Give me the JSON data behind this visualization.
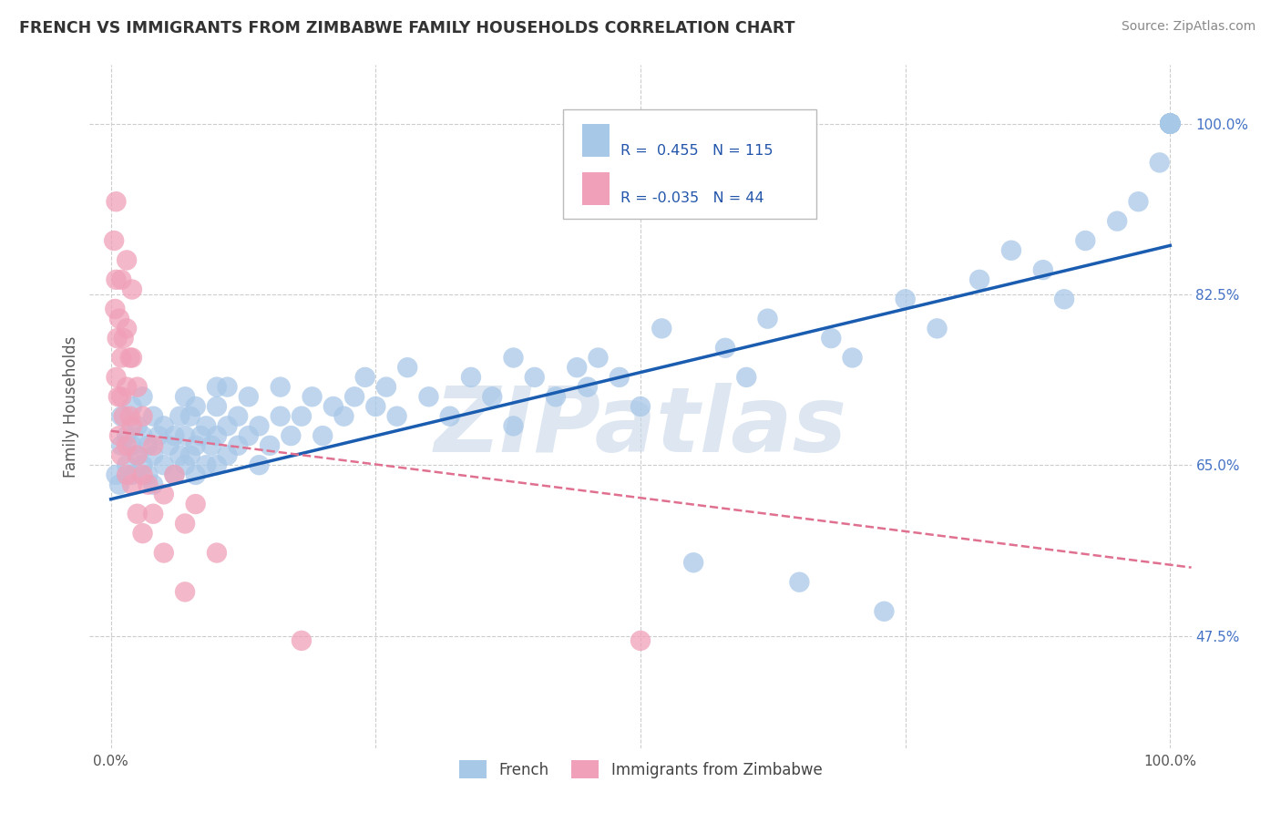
{
  "title": "FRENCH VS IMMIGRANTS FROM ZIMBABWE FAMILY HOUSEHOLDS CORRELATION CHART",
  "source": "Source: ZipAtlas.com",
  "ylabel": "Family Households",
  "watermark": "ZIPatlas",
  "xlim": [
    -0.02,
    1.02
  ],
  "ylim": [
    0.36,
    1.06
  ],
  "right_ytick_labels": [
    "100.0%",
    "82.5%",
    "65.0%",
    "47.5%"
  ],
  "right_ytick_values": [
    1.0,
    0.825,
    0.65,
    0.475
  ],
  "R_blue": 0.455,
  "N_blue": 115,
  "R_pink": -0.035,
  "N_pink": 44,
  "blue_color": "#A8C8E8",
  "pink_color": "#F0A0B8",
  "blue_line_color": "#1A5CB0",
  "pink_line_color": "#E07090",
  "grid_color": "#CCCCCC",
  "title_color": "#333333",
  "blue_scatter_x": [
    0.005,
    0.008,
    0.01,
    0.01,
    0.015,
    0.015,
    0.02,
    0.02,
    0.02,
    0.025,
    0.025,
    0.03,
    0.03,
    0.03,
    0.035,
    0.035,
    0.04,
    0.04,
    0.04,
    0.045,
    0.05,
    0.05,
    0.055,
    0.06,
    0.06,
    0.065,
    0.065,
    0.07,
    0.07,
    0.07,
    0.075,
    0.075,
    0.08,
    0.08,
    0.08,
    0.085,
    0.09,
    0.09,
    0.095,
    0.1,
    0.1,
    0.1,
    0.1,
    0.11,
    0.11,
    0.11,
    0.12,
    0.12,
    0.13,
    0.13,
    0.14,
    0.14,
    0.15,
    0.16,
    0.16,
    0.17,
    0.18,
    0.19,
    0.2,
    0.21,
    0.22,
    0.23,
    0.24,
    0.25,
    0.26,
    0.27,
    0.28,
    0.3,
    0.32,
    0.34,
    0.36,
    0.38,
    0.38,
    0.4,
    0.42,
    0.44,
    0.45,
    0.46,
    0.48,
    0.5,
    0.52,
    0.55,
    0.58,
    0.6,
    0.62,
    0.65,
    0.68,
    0.7,
    0.73,
    0.75,
    0.78,
    0.82,
    0.85,
    0.88,
    0.9,
    0.92,
    0.95,
    0.97,
    0.99,
    1.0,
    1.0,
    1.0,
    1.0,
    1.0,
    1.0,
    1.0,
    1.0,
    1.0,
    1.0,
    1.0,
    1.0,
    1.0,
    1.0,
    1.0,
    1.0
  ],
  "blue_scatter_y": [
    0.64,
    0.63,
    0.67,
    0.7,
    0.65,
    0.68,
    0.64,
    0.67,
    0.71,
    0.66,
    0.69,
    0.65,
    0.68,
    0.72,
    0.64,
    0.67,
    0.63,
    0.66,
    0.7,
    0.68,
    0.65,
    0.69,
    0.67,
    0.64,
    0.68,
    0.66,
    0.7,
    0.65,
    0.68,
    0.72,
    0.66,
    0.7,
    0.64,
    0.67,
    0.71,
    0.68,
    0.65,
    0.69,
    0.67,
    0.65,
    0.68,
    0.71,
    0.73,
    0.66,
    0.69,
    0.73,
    0.67,
    0.7,
    0.68,
    0.72,
    0.65,
    0.69,
    0.67,
    0.7,
    0.73,
    0.68,
    0.7,
    0.72,
    0.68,
    0.71,
    0.7,
    0.72,
    0.74,
    0.71,
    0.73,
    0.7,
    0.75,
    0.72,
    0.7,
    0.74,
    0.72,
    0.76,
    0.69,
    0.74,
    0.72,
    0.75,
    0.73,
    0.76,
    0.74,
    0.71,
    0.79,
    0.55,
    0.77,
    0.74,
    0.8,
    0.53,
    0.78,
    0.76,
    0.5,
    0.82,
    0.79,
    0.84,
    0.87,
    0.85,
    0.82,
    0.88,
    0.9,
    0.92,
    0.96,
    1.0,
    1.0,
    1.0,
    1.0,
    1.0,
    1.0,
    1.0,
    1.0,
    1.0,
    1.0,
    1.0,
    1.0,
    1.0,
    1.0,
    1.0,
    1.0
  ],
  "pink_scatter_x": [
    0.003,
    0.004,
    0.005,
    0.005,
    0.005,
    0.006,
    0.007,
    0.008,
    0.008,
    0.01,
    0.01,
    0.01,
    0.01,
    0.012,
    0.012,
    0.015,
    0.015,
    0.015,
    0.015,
    0.015,
    0.018,
    0.018,
    0.02,
    0.02,
    0.02,
    0.02,
    0.025,
    0.025,
    0.025,
    0.03,
    0.03,
    0.03,
    0.035,
    0.04,
    0.04,
    0.05,
    0.05,
    0.06,
    0.07,
    0.07,
    0.08,
    0.1,
    0.18,
    0.5
  ],
  "pink_scatter_y": [
    0.88,
    0.81,
    0.74,
    0.84,
    0.92,
    0.78,
    0.72,
    0.8,
    0.68,
    0.76,
    0.84,
    0.72,
    0.66,
    0.78,
    0.7,
    0.86,
    0.79,
    0.73,
    0.67,
    0.64,
    0.76,
    0.7,
    0.83,
    0.76,
    0.69,
    0.63,
    0.73,
    0.66,
    0.6,
    0.7,
    0.64,
    0.58,
    0.63,
    0.67,
    0.6,
    0.62,
    0.56,
    0.64,
    0.59,
    0.52,
    0.61,
    0.56,
    0.47,
    0.47
  ],
  "blue_trend_x0": 0.0,
  "blue_trend_x1": 1.0,
  "blue_trend_y0": 0.615,
  "blue_trend_y1": 0.875,
  "pink_trend_x0": 0.0,
  "pink_trend_x1": 1.02,
  "pink_trend_y0": 0.685,
  "pink_trend_y1": 0.545
}
